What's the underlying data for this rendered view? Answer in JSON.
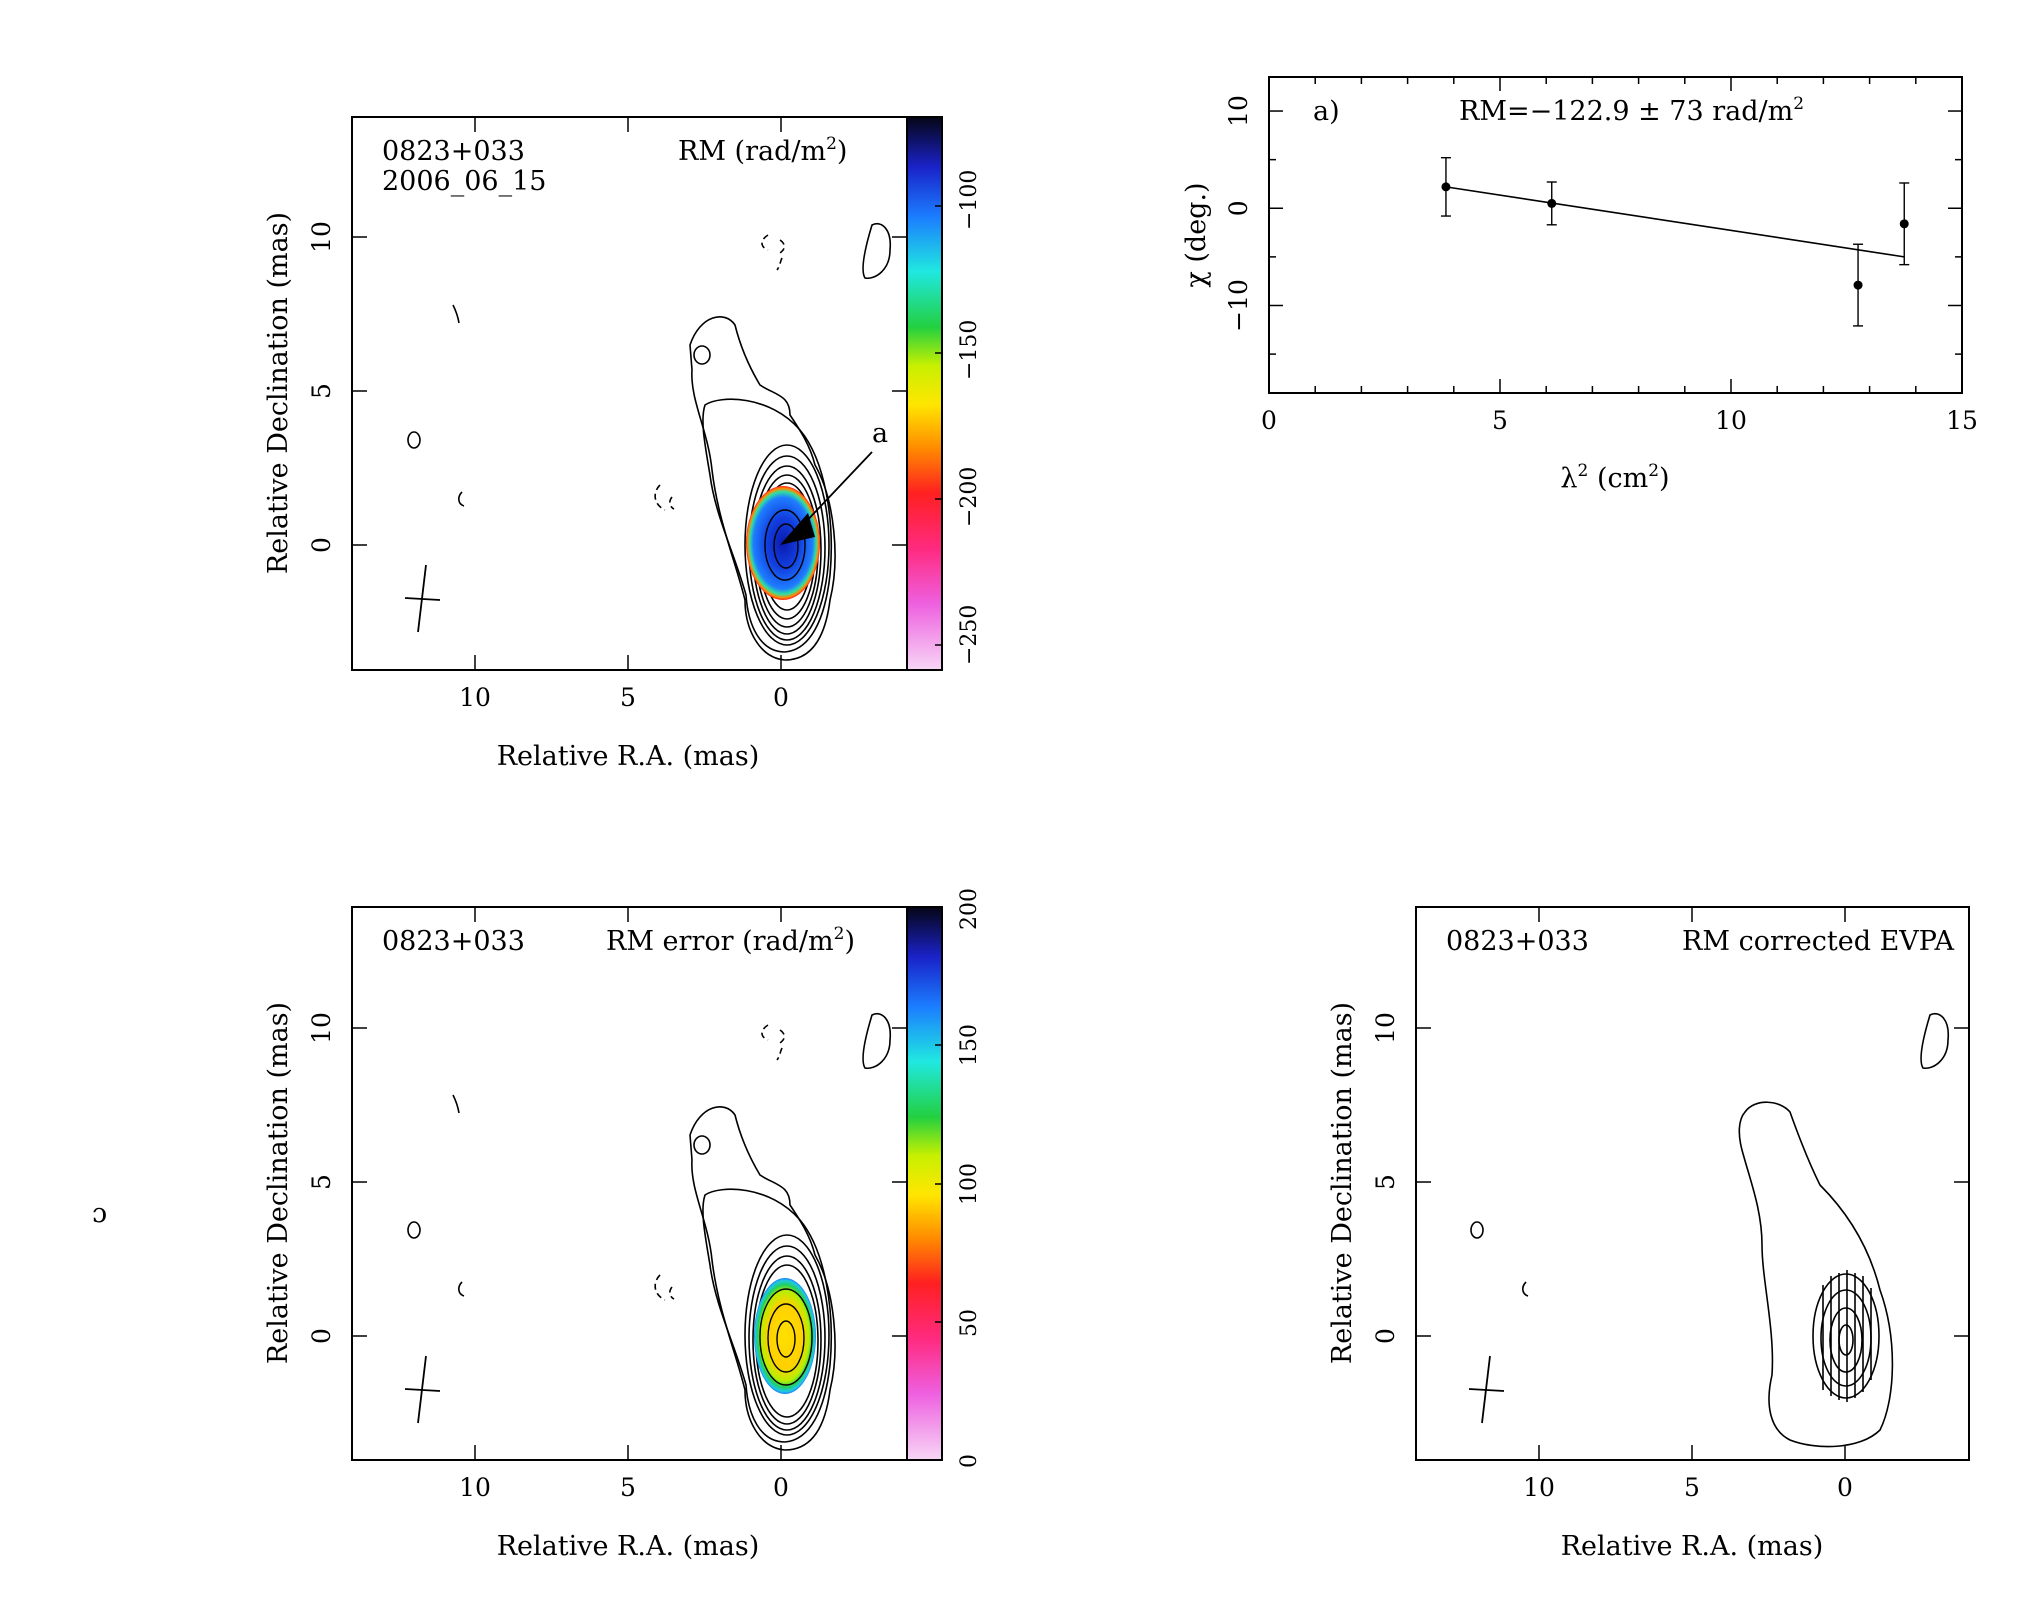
{
  "stray_glyph": "ɔ",
  "panels": {
    "rm_map": {
      "source": "0823+033",
      "epoch": "2006_06_15",
      "title_prefix": "RM (rad/m",
      "title_sup": "2",
      "title_suffix": ")",
      "annotation": "a",
      "xlabel": "Relative R.A. (mas)",
      "ylabel": "Relative Declination (mas)",
      "x_ticks": [
        "10",
        "5",
        "0"
      ],
      "y_ticks": [
        "0",
        "5",
        "10"
      ],
      "colorbar_ticks": [
        "−100",
        "−150",
        "−200",
        "−250"
      ],
      "colorbar_range": [
        -270,
        -80
      ]
    },
    "rm_error_map": {
      "source": "0823+033",
      "title_prefix": "RM error (rad/m",
      "title_sup": "2",
      "title_suffix": ")",
      "xlabel": "Relative R.A. (mas)",
      "ylabel": "Relative Declination (mas)",
      "x_ticks": [
        "10",
        "5",
        "0"
      ],
      "y_ticks": [
        "0",
        "5",
        "10"
      ],
      "colorbar_ticks": [
        "0",
        "50",
        "100",
        "150",
        "200"
      ],
      "colorbar_range": [
        0,
        200
      ]
    },
    "evpa_map": {
      "source": "0823+033",
      "title": "RM corrected EVPA",
      "xlabel": "Relative R.A. (mas)",
      "ylabel": "Relative Declination (mas)",
      "x_ticks": [
        "10",
        "5",
        "0"
      ],
      "y_ticks": [
        "0",
        "5",
        "10"
      ]
    }
  },
  "chart_data": [
    {
      "type": "scatter",
      "panel_label": "a)",
      "title_text": "RM=−122.9 ± 73 rad/m",
      "title_sup": "2",
      "xlabel_base": "λ",
      "xlabel_sup": "2",
      "xlabel_unit_open": " (cm",
      "xlabel_unit_sup": "2",
      "xlabel_unit_close": ")",
      "ylabel": "χ (deg.)",
      "xlim": [
        0,
        15
      ],
      "ylim": [
        -19,
        13.5
      ],
      "x_ticks": [
        0,
        5,
        10,
        15
      ],
      "y_ticks": [
        -10,
        0,
        10
      ],
      "x_tick_labels": [
        "0",
        "5",
        "10",
        "15"
      ],
      "y_tick_labels": [
        "−10",
        "0",
        "10"
      ],
      "points": [
        {
          "x": 3.83,
          "y": 2.2,
          "err": 3.0
        },
        {
          "x": 6.12,
          "y": 0.5,
          "err": 2.2
        },
        {
          "x": 12.75,
          "y": -7.9,
          "err": 4.2
        },
        {
          "x": 13.75,
          "y": -1.6,
          "err": 4.2
        }
      ],
      "fit": {
        "x": [
          3.83,
          13.75
        ],
        "y": [
          2.2,
          -5.0
        ]
      }
    }
  ]
}
